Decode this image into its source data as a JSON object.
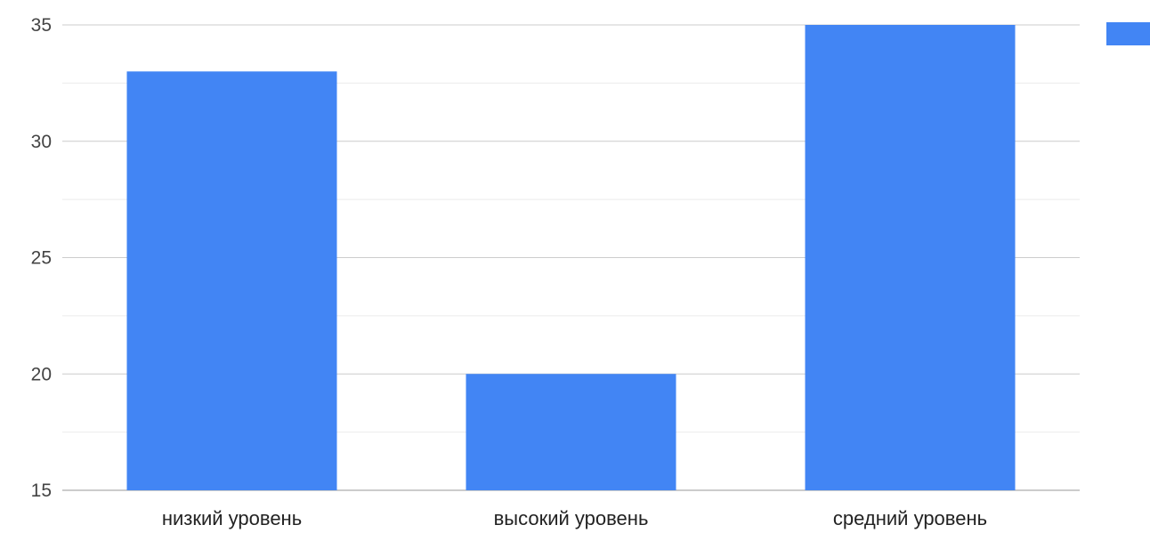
{
  "chart_data": {
    "type": "bar",
    "categories": [
      "низкий уровень",
      "высокий уровень",
      "средний уровень"
    ],
    "values": [
      33,
      20,
      35
    ],
    "ylim": [
      15,
      35
    ],
    "yticks": [
      15,
      20,
      25,
      30,
      35
    ],
    "minor_gridlines": true,
    "legend": "top-right",
    "bar_color": "#4285f4",
    "grid_major_color": "#cccccc",
    "grid_minor_color": "#ebebeb"
  }
}
